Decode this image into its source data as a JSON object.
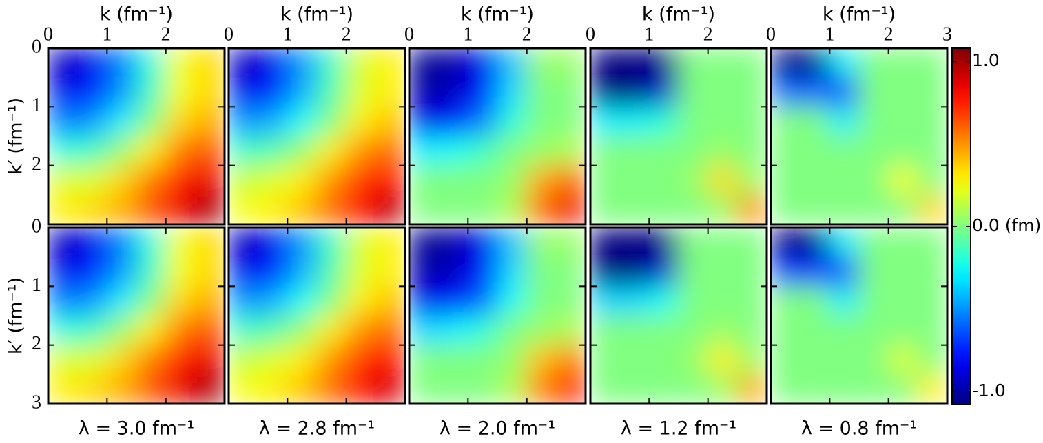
{
  "chart_data": {
    "type": "heatmap",
    "x_label": "k (fm⁻¹)",
    "y_label": "k′ (fm⁻¹)",
    "xlim": [
      0,
      3
    ],
    "ylim": [
      0,
      3
    ],
    "xticks": [
      0,
      1,
      2,
      3
    ],
    "yticks": [
      0,
      1,
      2,
      3
    ],
    "colormap": "jet",
    "clim": [
      -1.08,
      1.08
    ],
    "colorbar_ticks": [
      {
        "value": 1,
        "label": "1.0"
      },
      {
        "value": 0,
        "label": "0.0 (fm)"
      },
      {
        "value": -1,
        "label": "-1.0"
      }
    ],
    "columns": [
      "λ = 3.0 fm⁻¹",
      "λ = 2.8 fm⁻¹",
      "λ = 2.0 fm⁻¹",
      "λ = 1.2 fm⁻¹",
      "λ = 0.8 fm⁻¹"
    ],
    "x": [
      0.25,
      0.75,
      1.25,
      1.75,
      2.25,
      2.75
    ],
    "y": [
      0.25,
      0.75,
      1.25,
      1.75,
      2.25,
      2.75
    ],
    "panels": [
      [
        {
          "values": [
            [
              -0.95,
              -0.85,
              -0.55,
              -0.2,
              0.25,
              0.35
            ],
            [
              -0.85,
              -0.75,
              -0.5,
              -0.15,
              0.25,
              0.35
            ],
            [
              -0.55,
              -0.5,
              -0.3,
              0.0,
              0.35,
              0.45
            ],
            [
              -0.2,
              -0.15,
              0.05,
              0.3,
              0.55,
              0.65
            ],
            [
              0.2,
              0.2,
              0.35,
              0.55,
              0.75,
              0.85
            ],
            [
              0.3,
              0.35,
              0.45,
              0.65,
              0.85,
              1.0
            ]
          ]
        },
        {
          "values": [
            [
              -0.95,
              -0.85,
              -0.5,
              -0.15,
              0.2,
              0.3
            ],
            [
              -0.85,
              -0.75,
              -0.45,
              -0.1,
              0.2,
              0.3
            ],
            [
              -0.5,
              -0.45,
              -0.25,
              0.0,
              0.3,
              0.4
            ],
            [
              -0.15,
              -0.1,
              0.05,
              0.3,
              0.5,
              0.6
            ],
            [
              0.15,
              0.2,
              0.3,
              0.5,
              0.7,
              0.8
            ],
            [
              0.25,
              0.3,
              0.4,
              0.6,
              0.8,
              0.95
            ]
          ]
        },
        {
          "values": [
            [
              -1.05,
              -1.0,
              -0.85,
              -0.4,
              0.05,
              0.05
            ],
            [
              -1.0,
              -0.95,
              -0.8,
              -0.35,
              0.0,
              0.0
            ],
            [
              -0.85,
              -0.8,
              -0.55,
              -0.2,
              0.0,
              0.0
            ],
            [
              -0.3,
              -0.25,
              -0.15,
              0.0,
              0.05,
              0.1
            ],
            [
              0.0,
              0.0,
              0.0,
              0.05,
              0.45,
              0.6
            ],
            [
              0.0,
              0.0,
              0.0,
              0.1,
              0.6,
              0.85
            ]
          ]
        },
        {
          "values": [
            [
              -1.2,
              -1.2,
              -1.2,
              0.0,
              0.0,
              0.0
            ],
            [
              -1.2,
              -1.2,
              -0.9,
              0.0,
              0.0,
              0.0
            ],
            [
              -0.3,
              -0.3,
              -0.2,
              0.0,
              0.0,
              0.0
            ],
            [
              0.0,
              0.0,
              0.0,
              0.0,
              0.05,
              0.0
            ],
            [
              0.0,
              0.0,
              0.0,
              0.05,
              0.35,
              0.05
            ],
            [
              0.0,
              0.0,
              0.0,
              0.0,
              0.05,
              0.5
            ]
          ]
        },
        {
          "values": [
            [
              -1.2,
              -1.2,
              -0.3,
              0.0,
              0.0,
              0.0
            ],
            [
              -0.6,
              -0.6,
              -0.7,
              0.0,
              0.0,
              0.0
            ],
            [
              0.0,
              0.0,
              -0.3,
              0.0,
              0.0,
              0.0
            ],
            [
              0.0,
              0.0,
              0.0,
              0.0,
              0.0,
              0.0
            ],
            [
              0.0,
              0.0,
              0.0,
              0.0,
              0.25,
              0.0
            ],
            [
              0.0,
              0.0,
              0.0,
              0.0,
              0.0,
              0.35
            ]
          ]
        }
      ],
      [
        {
          "values": [
            [
              -0.95,
              -0.85,
              -0.55,
              -0.2,
              0.25,
              0.35
            ],
            [
              -0.85,
              -0.75,
              -0.5,
              -0.15,
              0.25,
              0.35
            ],
            [
              -0.55,
              -0.5,
              -0.3,
              0.0,
              0.35,
              0.45
            ],
            [
              -0.2,
              -0.15,
              0.05,
              0.3,
              0.55,
              0.65
            ],
            [
              0.2,
              0.2,
              0.35,
              0.55,
              0.75,
              0.85
            ],
            [
              0.3,
              0.35,
              0.45,
              0.65,
              0.85,
              1.0
            ]
          ]
        },
        {
          "values": [
            [
              -0.95,
              -0.85,
              -0.5,
              -0.15,
              0.2,
              0.3
            ],
            [
              -0.85,
              -0.75,
              -0.45,
              -0.1,
              0.2,
              0.3
            ],
            [
              -0.5,
              -0.45,
              -0.25,
              0.0,
              0.3,
              0.4
            ],
            [
              -0.15,
              -0.1,
              0.05,
              0.3,
              0.5,
              0.6
            ],
            [
              0.15,
              0.2,
              0.3,
              0.5,
              0.7,
              0.8
            ],
            [
              0.25,
              0.3,
              0.4,
              0.6,
              0.8,
              0.9
            ]
          ]
        },
        {
          "values": [
            [
              -1.05,
              -1.0,
              -0.85,
              -0.4,
              0.05,
              0.05
            ],
            [
              -1.0,
              -0.95,
              -0.8,
              -0.35,
              0.0,
              0.0
            ],
            [
              -0.85,
              -0.8,
              -0.6,
              -0.25,
              0.0,
              0.0
            ],
            [
              -0.35,
              -0.3,
              -0.2,
              0.0,
              0.05,
              0.1
            ],
            [
              0.0,
              0.0,
              0.0,
              0.05,
              0.4,
              0.55
            ],
            [
              0.0,
              0.0,
              0.0,
              0.1,
              0.55,
              0.8
            ]
          ]
        },
        {
          "values": [
            [
              -1.2,
              -1.2,
              -1.2,
              0.0,
              0.0,
              0.0
            ],
            [
              -1.2,
              -1.2,
              -0.9,
              0.0,
              0.0,
              0.0
            ],
            [
              -0.35,
              -0.35,
              -0.25,
              0.0,
              0.0,
              0.0
            ],
            [
              0.0,
              0.0,
              0.0,
              0.0,
              0.05,
              0.0
            ],
            [
              0.0,
              0.0,
              0.0,
              0.05,
              0.3,
              0.05
            ],
            [
              0.0,
              0.0,
              0.0,
              0.0,
              0.05,
              0.45
            ]
          ]
        },
        {
          "values": [
            [
              -1.2,
              -1.2,
              -0.3,
              0.0,
              0.0,
              0.0
            ],
            [
              -0.7,
              -0.7,
              -0.7,
              0.0,
              0.0,
              0.0
            ],
            [
              0.0,
              0.0,
              -0.3,
              0.0,
              0.0,
              0.0
            ],
            [
              0.0,
              0.0,
              0.0,
              0.0,
              0.0,
              0.0
            ],
            [
              0.0,
              0.0,
              0.0,
              0.0,
              0.2,
              0.0
            ],
            [
              0.0,
              0.0,
              0.0,
              0.0,
              0.0,
              0.3
            ]
          ]
        }
      ]
    ]
  }
}
